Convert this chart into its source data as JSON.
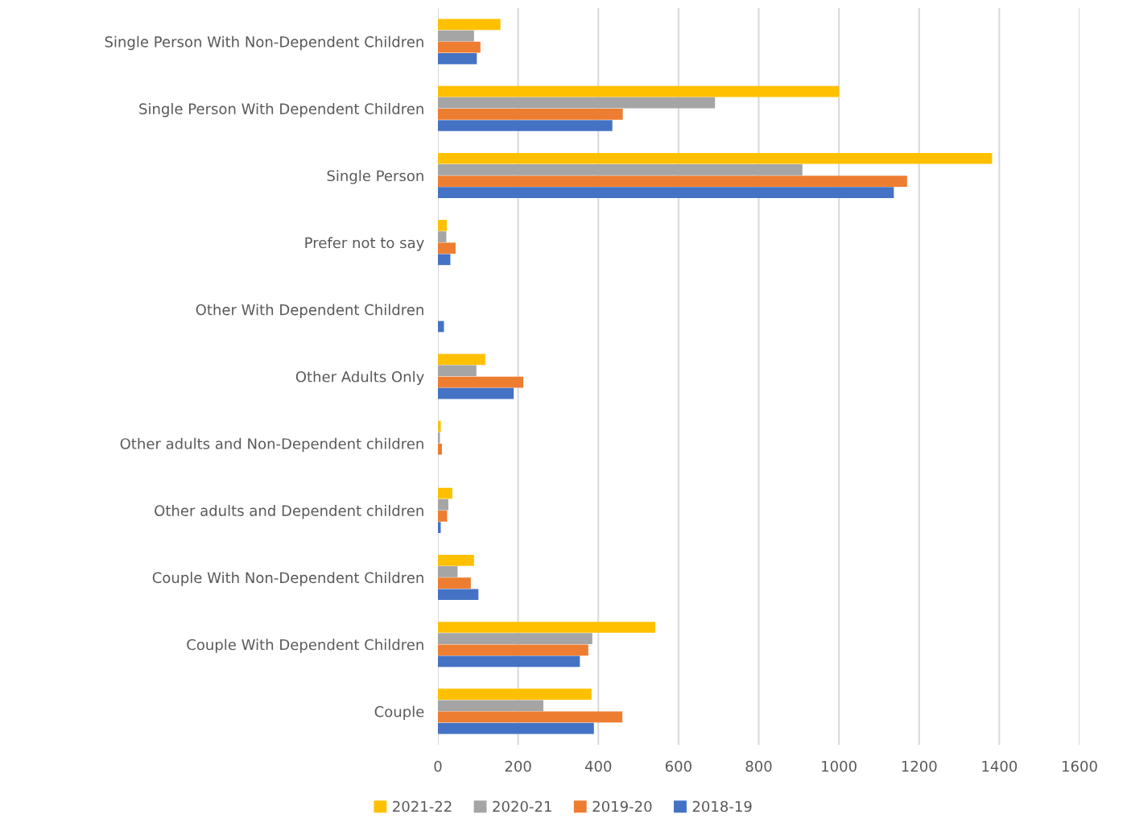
{
  "chart_data": {
    "type": "bar",
    "orientation": "horizontal",
    "categories": [
      "Single Person With Non-Dependent Children",
      "Single Person With Dependent Children",
      "Single Person",
      "Prefer not to say",
      "Other With Dependent Children",
      "Other Adults Only",
      "Other adults and Non-Dependent children",
      "Other adults and Dependent children",
      "Couple With Non-Dependent Children",
      "Couple With Dependent Children",
      "Couple"
    ],
    "series": [
      {
        "name": "2021-22",
        "color": "#ffc000",
        "values": [
          156,
          1000,
          1382,
          22,
          0,
          118,
          7,
          36,
          90,
          542,
          383
        ]
      },
      {
        "name": "2020-21",
        "color": "#a5a5a5",
        "values": [
          90,
          691,
          909,
          21,
          null,
          96,
          5,
          26,
          49,
          385,
          263
        ]
      },
      {
        "name": "2019-20",
        "color": "#ed7d31",
        "values": [
          106,
          461,
          1170,
          44,
          0,
          213,
          10,
          23,
          82,
          375,
          460
        ]
      },
      {
        "name": "2018-19",
        "color": "#4472c4",
        "values": [
          97,
          435,
          1137,
          31,
          15,
          189,
          0,
          7,
          101,
          354,
          389
        ]
      }
    ],
    "xlim": [
      0,
      1600
    ],
    "xticks": [
      0,
      200,
      400,
      600,
      800,
      1000,
      1200,
      1400,
      1600
    ],
    "grid": "x",
    "legend": "bottom"
  }
}
